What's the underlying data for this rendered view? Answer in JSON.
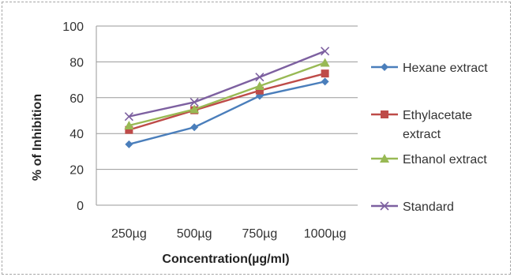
{
  "chart_data": {
    "type": "line",
    "title": "",
    "xlabel": "Concentration(µg/ml)",
    "ylabel": "% of Inhibition",
    "categories": [
      "250µg",
      "500µg",
      "750µg",
      "1000µg"
    ],
    "ylim": [
      0,
      100
    ],
    "yticks": [
      0,
      20,
      40,
      60,
      80,
      100
    ],
    "grid": true,
    "legend": "right",
    "series": [
      {
        "name": "Hexane extract",
        "values": [
          34,
          43.5,
          61,
          69
        ],
        "color": "#4a7ebb",
        "marker": "diamond"
      },
      {
        "name": "Ethylacetate extract",
        "name_lines": [
          "Ethylacetate",
          "extract"
        ],
        "values": [
          42,
          53,
          64,
          73.5
        ],
        "color": "#be4b48",
        "marker": "square"
      },
      {
        "name": "Ethanol extract",
        "values": [
          44.5,
          53.5,
          66.5,
          79.5
        ],
        "color": "#98b954",
        "marker": "triangle"
      },
      {
        "name": "Standard",
        "values": [
          49.5,
          57.5,
          71.5,
          86
        ],
        "color": "#7d60a0",
        "marker": "x"
      }
    ]
  }
}
